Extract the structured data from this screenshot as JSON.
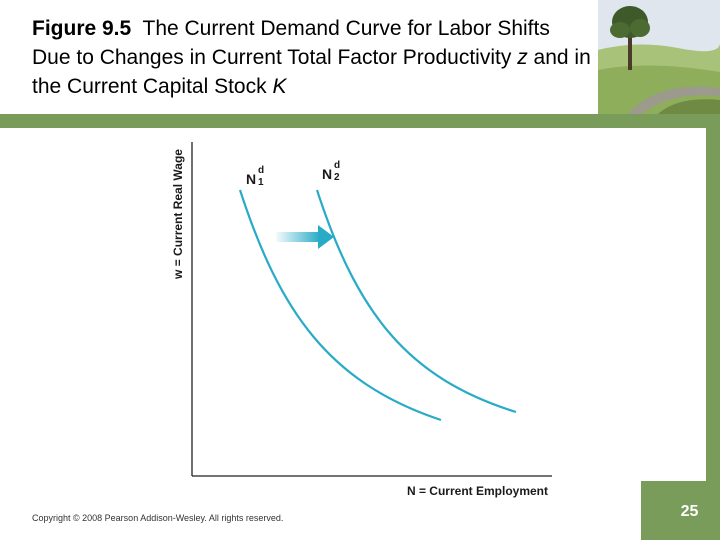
{
  "header": {
    "figure_label": "Figure 9.5",
    "title_part1": "The Current Demand Curve for Labor Shifts Due to Changes in Current Total Factor Productivity",
    "title_var_z": "z",
    "title_part2": "and in the Current Capital Stock",
    "title_var_k": "K"
  },
  "diagram": {
    "y_axis_label": "w = Current Real Wage",
    "x_axis_label": "N = Current Employment",
    "curves": [
      {
        "letter": "N",
        "sup": "d",
        "sub": "1"
      },
      {
        "letter": "N",
        "sup": "d",
        "sub": "2"
      }
    ],
    "shift_direction": "right",
    "curve_color": "#29abc7",
    "arrow_color": "#29abc7"
  },
  "footer": {
    "copyright": "Copyright © 2008 Pearson Addison-Wesley. All rights reserved.",
    "page_number": "25"
  },
  "colors": {
    "accent_green": "#7a9c5a"
  }
}
